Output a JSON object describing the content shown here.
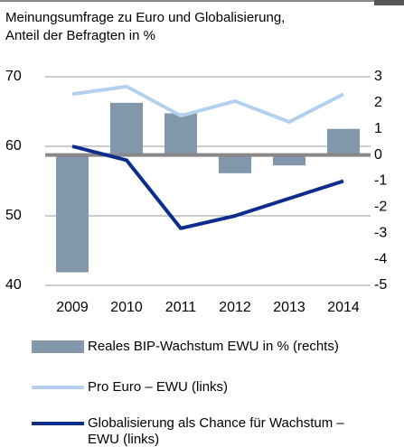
{
  "chart_data": {
    "type": "bar",
    "title": "Meinungsumfrage zu Euro und Globalisierung,",
    "subtitle": "Anteil der Befragten in %",
    "categories": [
      "2009",
      "2010",
      "2011",
      "2012",
      "2013",
      "2014"
    ],
    "ylim": [
      40,
      70
    ],
    "yticks": [
      40,
      50,
      60,
      70
    ],
    "y2lim": [
      -5,
      3
    ],
    "y2ticks": [
      -5,
      -4,
      -3,
      -2,
      -1,
      0,
      1,
      2,
      3
    ],
    "grid": true,
    "series": [
      {
        "name": "Reales BIP-Wachstum EWU in % (rechts)",
        "type": "bar",
        "axis": "y2",
        "color": "#8397ab",
        "values": [
          -4.5,
          2.0,
          1.6,
          -0.7,
          -0.4,
          1.0
        ]
      },
      {
        "name": "Pro Euro – EWU (links)",
        "type": "line",
        "color": "#b3d0ee",
        "values": [
          67.5,
          68.6,
          64.4,
          66.5,
          63.5,
          67.5
        ]
      },
      {
        "name": "Globalisierung als Chance für Wachstum – EWU (links)",
        "type": "line",
        "color": "#0d2c8c",
        "values": [
          60,
          58,
          48.2,
          50,
          52.5,
          55
        ]
      }
    ]
  }
}
